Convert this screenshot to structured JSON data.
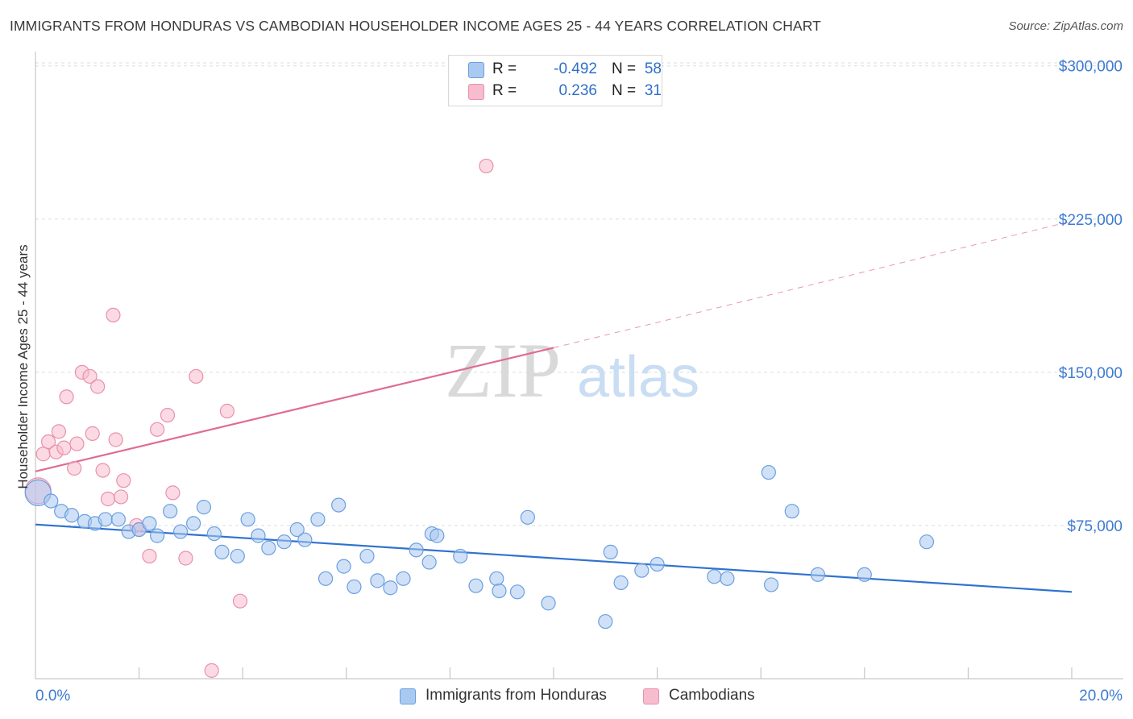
{
  "title": "IMMIGRANTS FROM HONDURAS VS CAMBODIAN HOUSEHOLDER INCOME AGES 25 - 44 YEARS CORRELATION CHART",
  "source": "Source: ZipAtlas.com",
  "watermark": {
    "zip": "ZIP",
    "atlas": "atlas"
  },
  "legend": {
    "r_label": "R =",
    "n_label": "N =",
    "rows": [
      {
        "r": "-0.492",
        "n": "58",
        "color": "#a9c9f0"
      },
      {
        "r": "0.236",
        "n": "31",
        "color": "#f7bccd"
      }
    ]
  },
  "bottom_legend": [
    {
      "label": "Immigrants from Honduras",
      "color": "#a9c9f0"
    },
    {
      "label": "Cambodians",
      "color": "#f7bccd"
    }
  ],
  "colors": {
    "blue_fill": "#a9c9f0",
    "blue_stroke": "#6a9fe0",
    "blue_line": "#2f72d0",
    "pink_fill": "#f7bccd",
    "pink_stroke": "#e990ad",
    "pink_line": "#e06b93",
    "axis_text": "#3d7bd0",
    "grid": "#dedede"
  },
  "chart_data": {
    "type": "scatter",
    "title": "IMMIGRANTS FROM HONDURAS VS CAMBODIAN HOUSEHOLDER INCOME AGES 25 - 44 YEARS CORRELATION CHART",
    "xlabel": "",
    "ylabel": "Householder Income Ages 25 - 44 years",
    "xlim": [
      0,
      20
    ],
    "ylim": [
      0,
      307000
    ],
    "x_tick_labels": [
      "0.0%",
      "20.0%"
    ],
    "y_ticks": [
      75000,
      150000,
      225000,
      300000
    ],
    "y_tick_labels": [
      "$75,000",
      "$150,000",
      "$225,000",
      "$300,000"
    ],
    "grid": true,
    "legend_position": "top-center",
    "series": [
      {
        "name": "Immigrants from Honduras",
        "r": -0.492,
        "n": 58,
        "trend": {
          "x0": 0,
          "y0": 75500,
          "x1": 20,
          "y1": 42500
        },
        "points": [
          {
            "x": 0.05,
            "y": 91000,
            "big": true
          },
          {
            "x": 0.3,
            "y": 87000
          },
          {
            "x": 0.5,
            "y": 82000
          },
          {
            "x": 0.7,
            "y": 80000
          },
          {
            "x": 0.95,
            "y": 77000
          },
          {
            "x": 1.15,
            "y": 76000
          },
          {
            "x": 1.35,
            "y": 78000
          },
          {
            "x": 1.6,
            "y": 78000
          },
          {
            "x": 1.8,
            "y": 72000
          },
          {
            "x": 2.0,
            "y": 73000
          },
          {
            "x": 2.2,
            "y": 76000
          },
          {
            "x": 2.35,
            "y": 70000
          },
          {
            "x": 2.6,
            "y": 82000
          },
          {
            "x": 2.8,
            "y": 72000
          },
          {
            "x": 3.05,
            "y": 76000
          },
          {
            "x": 3.25,
            "y": 84000
          },
          {
            "x": 3.45,
            "y": 71000
          },
          {
            "x": 3.6,
            "y": 62000
          },
          {
            "x": 3.9,
            "y": 60000
          },
          {
            "x": 4.1,
            "y": 78000
          },
          {
            "x": 4.3,
            "y": 70000
          },
          {
            "x": 4.5,
            "y": 64000
          },
          {
            "x": 4.8,
            "y": 67000
          },
          {
            "x": 5.05,
            "y": 73000
          },
          {
            "x": 5.2,
            "y": 68000
          },
          {
            "x": 5.45,
            "y": 78000
          },
          {
            "x": 5.6,
            "y": 49000
          },
          {
            "x": 5.85,
            "y": 85000
          },
          {
            "x": 5.95,
            "y": 55000
          },
          {
            "x": 6.15,
            "y": 45000
          },
          {
            "x": 6.4,
            "y": 60000
          },
          {
            "x": 6.6,
            "y": 48000
          },
          {
            "x": 6.85,
            "y": 44500
          },
          {
            "x": 7.1,
            "y": 49000
          },
          {
            "x": 7.35,
            "y": 63000
          },
          {
            "x": 7.6,
            "y": 57000
          },
          {
            "x": 7.65,
            "y": 71000
          },
          {
            "x": 7.75,
            "y": 70000
          },
          {
            "x": 8.2,
            "y": 60000
          },
          {
            "x": 8.5,
            "y": 45500
          },
          {
            "x": 8.9,
            "y": 49000
          },
          {
            "x": 8.95,
            "y": 43000
          },
          {
            "x": 9.3,
            "y": 42500
          },
          {
            "x": 9.5,
            "y": 79000
          },
          {
            "x": 9.9,
            "y": 37000
          },
          {
            "x": 11.0,
            "y": 28000
          },
          {
            "x": 11.1,
            "y": 62000
          },
          {
            "x": 11.3,
            "y": 47000
          },
          {
            "x": 11.7,
            "y": 53000
          },
          {
            "x": 12.0,
            "y": 56000
          },
          {
            "x": 13.1,
            "y": 50000
          },
          {
            "x": 13.35,
            "y": 49000
          },
          {
            "x": 14.15,
            "y": 101000
          },
          {
            "x": 14.2,
            "y": 46000
          },
          {
            "x": 14.6,
            "y": 82000
          },
          {
            "x": 15.1,
            "y": 51000
          },
          {
            "x": 16.0,
            "y": 51000
          },
          {
            "x": 17.2,
            "y": 67000
          }
        ]
      },
      {
        "name": "Cambodians",
        "r": 0.236,
        "n": 31,
        "trend": {
          "x0": 0,
          "y0": 101500,
          "x1": 10,
          "y1": 162000,
          "dash_x1": 20,
          "dash_y1": 224000
        },
        "points": [
          {
            "x": 0.05,
            "y": 92000,
            "big": true
          },
          {
            "x": 0.15,
            "y": 110000
          },
          {
            "x": 0.25,
            "y": 116000
          },
          {
            "x": 0.4,
            "y": 111000
          },
          {
            "x": 0.45,
            "y": 121000
          },
          {
            "x": 0.55,
            "y": 113000
          },
          {
            "x": 0.6,
            "y": 138000
          },
          {
            "x": 0.75,
            "y": 103000
          },
          {
            "x": 0.8,
            "y": 115000
          },
          {
            "x": 0.9,
            "y": 150000
          },
          {
            "x": 1.05,
            "y": 148000
          },
          {
            "x": 1.1,
            "y": 120000
          },
          {
            "x": 1.2,
            "y": 143000
          },
          {
            "x": 1.3,
            "y": 102000
          },
          {
            "x": 1.4,
            "y": 88000
          },
          {
            "x": 1.5,
            "y": 178000
          },
          {
            "x": 1.55,
            "y": 117000
          },
          {
            "x": 1.65,
            "y": 89000
          },
          {
            "x": 1.7,
            "y": 97000
          },
          {
            "x": 1.95,
            "y": 75000
          },
          {
            "x": 2.0,
            "y": 73000
          },
          {
            "x": 2.2,
            "y": 60000
          },
          {
            "x": 2.35,
            "y": 122000
          },
          {
            "x": 2.55,
            "y": 129000
          },
          {
            "x": 2.65,
            "y": 91000
          },
          {
            "x": 2.9,
            "y": 59000
          },
          {
            "x": 3.1,
            "y": 148000
          },
          {
            "x": 3.4,
            "y": 4000
          },
          {
            "x": 3.7,
            "y": 131000
          },
          {
            "x": 3.95,
            "y": 38000
          },
          {
            "x": 8.7,
            "y": 251000
          }
        ]
      }
    ]
  }
}
